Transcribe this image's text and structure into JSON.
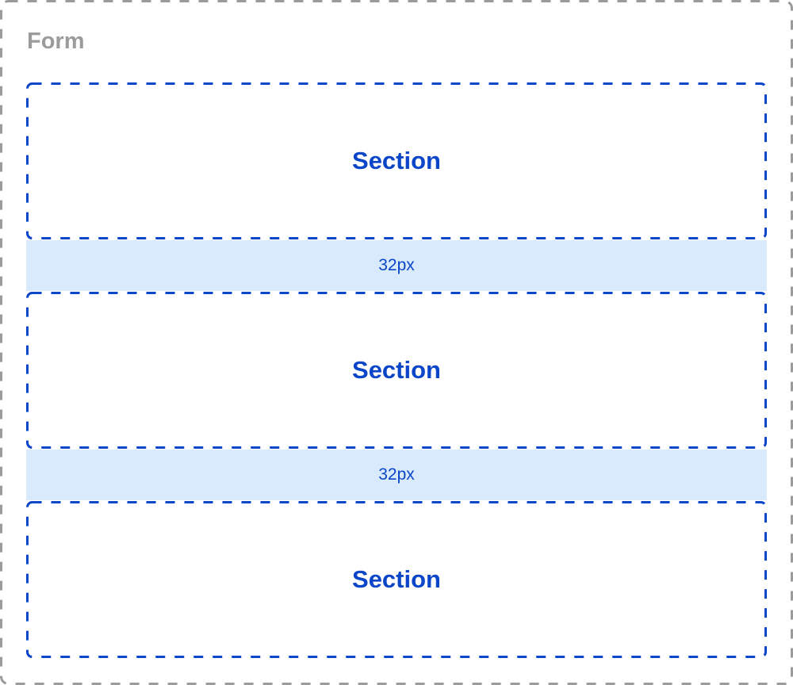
{
  "form": {
    "title": "Form"
  },
  "sections": [
    {
      "label": "Section"
    },
    {
      "label": "Section"
    },
    {
      "label": "Section"
    }
  ],
  "gaps": [
    {
      "label": "32px"
    },
    {
      "label": "32px"
    }
  ],
  "colors": {
    "form_border": "#9b9b9b",
    "section": "#0b45c8",
    "gap_fill": "#d8eafc"
  }
}
